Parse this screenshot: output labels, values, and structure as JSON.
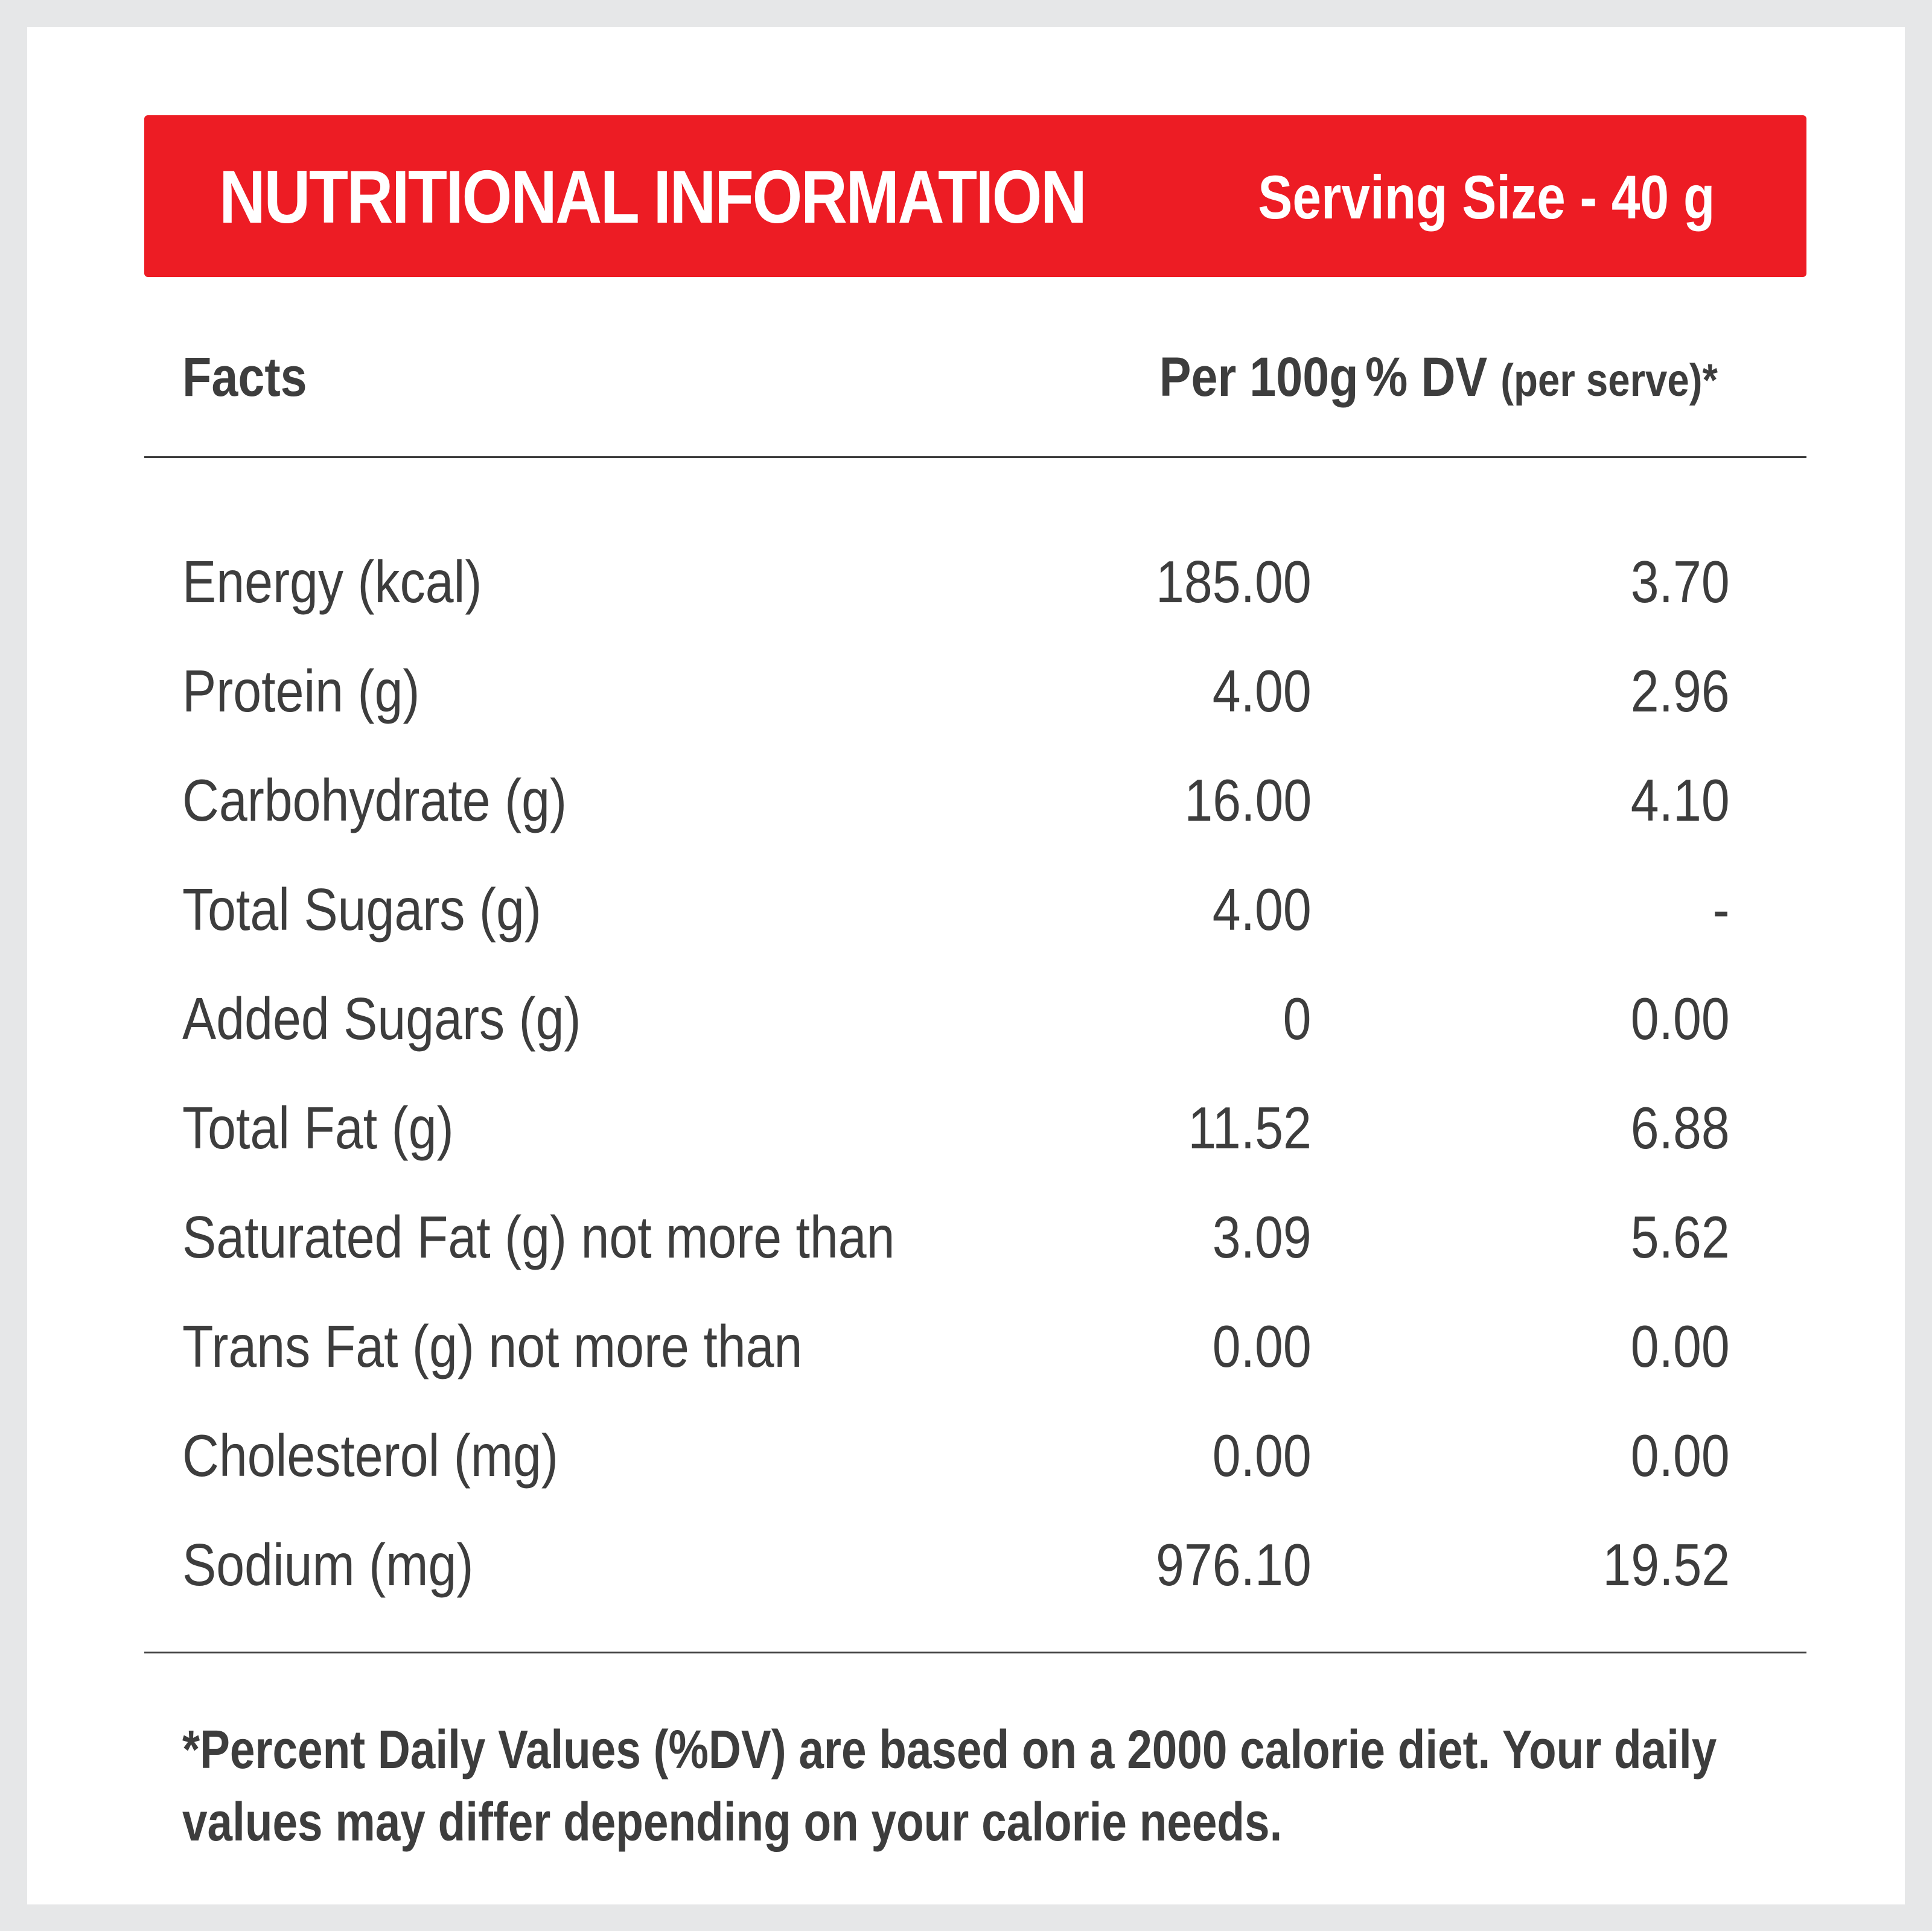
{
  "banner": {
    "title": "NUTRITIONAL INFORMATION",
    "serving": "Serving Size - 40 g"
  },
  "header": {
    "facts": "Facts",
    "per100": "Per 100g",
    "dv_main": "% DV",
    "dv_note": "(per serve)*"
  },
  "rows": [
    {
      "name": "Energy (kcal)",
      "per100": "185.00",
      "dv": "3.70"
    },
    {
      "name": "Protein (g)",
      "per100": "4.00",
      "dv": "2.96"
    },
    {
      "name": "Carbohydrate (g)",
      "per100": "16.00",
      "dv": "4.10"
    },
    {
      "name": "Total Sugars (g)",
      "per100": "4.00",
      "dv": "-"
    },
    {
      "name": "Added Sugars (g)",
      "per100": "0",
      "dv": "0.00"
    },
    {
      "name": "Total Fat (g)",
      "per100": "11.52",
      "dv": "6.88"
    },
    {
      "name": "Saturated Fat (g) not more than",
      "per100": "3.09",
      "dv": "5.62"
    },
    {
      "name": "Trans Fat (g) not more than",
      "per100": "0.00",
      "dv": "0.00"
    },
    {
      "name": "Cholesterol (mg)",
      "per100": "0.00",
      "dv": "0.00"
    },
    {
      "name": "Sodium (mg)",
      "per100": "976.10",
      "dv": "19.52"
    }
  ],
  "footnote": {
    "line1": "*Percent Daily Values (%DV) are based on a 2000 calorie diet. Your daily",
    "line2": "values may differ depending on your calorie needs."
  },
  "colors": {
    "banner": "#ed1c24",
    "text": "#3d3d3d",
    "frame": "#e6e7e8"
  }
}
